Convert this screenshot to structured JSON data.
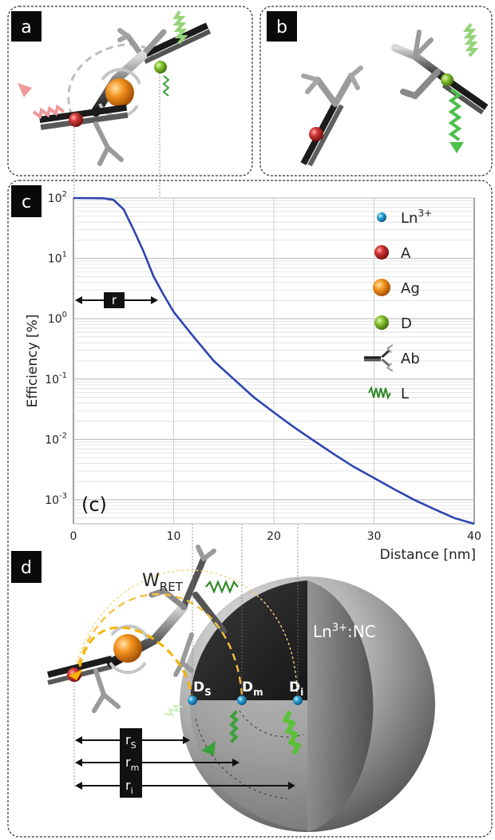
{
  "panels": {
    "a": "a",
    "b": "b",
    "c": "c",
    "d": "d"
  },
  "chart_data": {
    "type": "line",
    "scale_y": "log",
    "xlabel": "Distance [nm]",
    "ylabel": "Efficiency [%]",
    "xlim": [
      0,
      40
    ],
    "ylim": [
      0.0004,
      100
    ],
    "xticks": [
      "0",
      "10",
      "20",
      "30",
      "40"
    ],
    "yticks": [
      {
        "base": "10",
        "exp": "2"
      },
      {
        "base": "10",
        "exp": "1"
      },
      {
        "base": "10",
        "exp": "0",
        "text": "10^0"
      },
      {
        "base": "10",
        "exp": "-1"
      },
      {
        "base": "10",
        "exp": "-2"
      },
      {
        "base": "10",
        "exp": "-3"
      }
    ],
    "grid": true,
    "series": [
      {
        "color": "#2d45b0",
        "x": [
          0,
          3,
          4,
          5,
          6,
          7,
          8,
          9,
          10,
          12,
          14,
          16,
          18,
          20,
          22,
          24,
          26,
          28,
          30,
          32,
          34,
          36,
          38,
          40
        ],
        "y": [
          100,
          99,
          93,
          65,
          30,
          13,
          5,
          2.5,
          1.3,
          0.5,
          0.2,
          0.1,
          0.05,
          0.028,
          0.016,
          0.0095,
          0.0057,
          0.0035,
          0.0023,
          0.0015,
          0.001,
          0.0007,
          0.0005,
          0.0004
        ]
      }
    ],
    "annotations": {
      "inset_label": "(c)",
      "r_label": "r"
    },
    "legend": {
      "placement": "right",
      "entries": [
        {
          "sym": "blue-sphere-icon",
          "text": "Ln",
          "sup": "3+",
          "color": "#2aa3d8"
        },
        {
          "sym": "red-sphere-icon",
          "text": "A",
          "sup": "",
          "color": "#c0262c"
        },
        {
          "sym": "orange-sphere-icon",
          "text": "Ag",
          "sup": "",
          "color": "#f08a18"
        },
        {
          "sym": "green-sphere-icon",
          "text": "D",
          "sup": "",
          "color": "#7cb82a"
        },
        {
          "sym": "antibody-icon",
          "text": "Ab",
          "sup": "",
          "color": "#333333"
        },
        {
          "sym": "wave-icon",
          "text": "L",
          "sup": "",
          "color": "#2f8a2a"
        }
      ]
    }
  },
  "panel_d": {
    "wret_main": "W",
    "wret_sub": "RET",
    "nc_label": "Ln",
    "nc_sup": "3+",
    "nc_suffix": ":NC",
    "donors": [
      {
        "main": "D",
        "sub": "S"
      },
      {
        "main": "D",
        "sub": "m"
      },
      {
        "main": "D",
        "sub": "i"
      }
    ],
    "radii": [
      {
        "main": "r",
        "sub": "S"
      },
      {
        "main": "r",
        "sub": "m"
      },
      {
        "main": "r",
        "sub": "i"
      }
    ]
  }
}
